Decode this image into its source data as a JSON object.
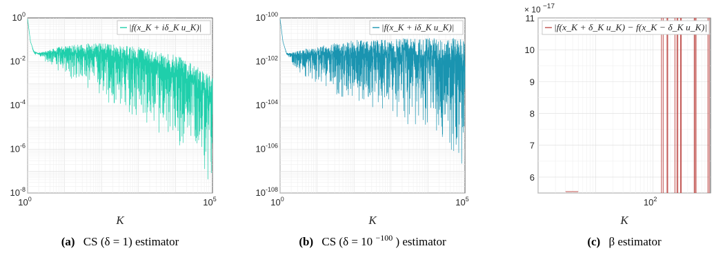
{
  "chart_data": [
    {
      "type": "line",
      "name": "cs-delta-1",
      "xscale": "log",
      "yscale": "log",
      "xlim": [
        1,
        100000
      ],
      "ylim": [
        1e-08,
        1
      ],
      "xticks": [
        {
          "value": 1,
          "base": "10",
          "exp": "0"
        },
        {
          "value": 100000,
          "base": "10",
          "exp": "5"
        }
      ],
      "yticks": [
        {
          "value": 1,
          "base": "10",
          "exp": "0"
        },
        {
          "value": 0.01,
          "base": "10",
          "exp": "-2"
        },
        {
          "value": 0.0001,
          "base": "10",
          "exp": "-4"
        },
        {
          "value": 1e-06,
          "base": "10",
          "exp": "-6"
        },
        {
          "value": 1e-08,
          "base": "10",
          "exp": "-8"
        }
      ],
      "xlabel": "K",
      "grid": true,
      "legend_position": "top-right",
      "series": [
        {
          "name": "|f(x_K + iδ_K u_K)|",
          "color": "#1fcfab",
          "envelope": {
            "x": [
              1,
              1.2,
              1.5,
              2,
              3,
              5,
              8,
              10,
              20,
              50,
              100,
              300,
              1000,
              3000,
              10000,
              30000,
              100000
            ],
            "upper": [
              0.9,
              0.08,
              0.03,
              0.025,
              0.03,
              0.04,
              0.05,
              0.05,
              0.06,
              0.07,
              0.07,
              0.06,
              0.05,
              0.03,
              0.02,
              0.01,
              0.002
            ],
            "lower": [
              0.9,
              0.08,
              0.02,
              0.02,
              0.01,
              0.004,
              0.003,
              0.002,
              0.001,
              0.0004,
              0.0002,
              6e-05,
              2e-05,
              6e-06,
              2e-06,
              4e-07,
              1e-08
            ]
          }
        }
      ],
      "caption": {
        "label": "(a)",
        "text": "CS (δ = 1) estimator"
      }
    },
    {
      "type": "line",
      "name": "cs-delta-1e-100",
      "xscale": "log",
      "yscale": "log",
      "xlim": [
        1,
        100000
      ],
      "ylim": [
        1e-108,
        1e-100
      ],
      "xticks": [
        {
          "value": 1,
          "base": "10",
          "exp": "0"
        },
        {
          "value": 100000,
          "base": "10",
          "exp": "5"
        }
      ],
      "yticks": [
        {
          "value": -100,
          "base": "10",
          "exp": "-100"
        },
        {
          "value": -102,
          "base": "10",
          "exp": "-102"
        },
        {
          "value": -104,
          "base": "10",
          "exp": "-104"
        },
        {
          "value": -106,
          "base": "10",
          "exp": "-106"
        },
        {
          "value": -108,
          "base": "10",
          "exp": "-108"
        }
      ],
      "xlabel": "K",
      "grid": true,
      "legend_position": "top-right",
      "series": [
        {
          "name": "|f(x_K + iδ_K u_K)|",
          "color": "#1a94b0",
          "envelope_log10": {
            "x": [
              1,
              1.2,
              1.5,
              2,
              3,
              5,
              8,
              10,
              20,
              50,
              100,
              300,
              1000,
              3000,
              10000,
              30000,
              100000
            ],
            "upper": [
              -100.05,
              -101.1,
              -101.6,
              -101.6,
              -101.5,
              -101.4,
              -101.4,
              -101.3,
              -101.2,
              -101.1,
              -101.0,
              -101.0,
              -101.0,
              -100.9,
              -100.9,
              -100.9,
              -100.9
            ],
            "lower": [
              -100.05,
              -101.1,
              -101.7,
              -102.0,
              -102.5,
              -102.8,
              -103.0,
              -103.2,
              -103.5,
              -103.8,
              -104.0,
              -104.3,
              -104.6,
              -105.0,
              -105.5,
              -106.2,
              -107.5
            ]
          }
        }
      ],
      "caption": {
        "label": "(b)",
        "text": "CS (δ = 10",
        "sup": "−100",
        "text_after": ") estimator"
      }
    },
    {
      "type": "line",
      "name": "beta-estimator",
      "xscale": "log",
      "yscale": "linear",
      "xlim": [
        1,
        1000
      ],
      "ylim": [
        5.5,
        11
      ],
      "y_exponent_label": {
        "base": "× 10",
        "exp": "−17"
      },
      "xticks": [
        {
          "value": 100,
          "base": "10",
          "exp": "2"
        }
      ],
      "yticks": [
        6,
        7,
        8,
        9,
        10,
        11
      ],
      "xlabel": "K",
      "grid": true,
      "legend_position": "top-right",
      "series": [
        {
          "name": "|f(x_K + δ_K u_K) − f(x_K − δ_K u_K)|",
          "color": "#c0504d",
          "spike_x": [
            140,
            150,
            175,
            180,
            240,
            260,
            270,
            300,
            310,
            520,
            540,
            560,
            900,
            950
          ]
        }
      ],
      "caption": {
        "label": "(c)",
        "text": "β estimator"
      }
    }
  ]
}
